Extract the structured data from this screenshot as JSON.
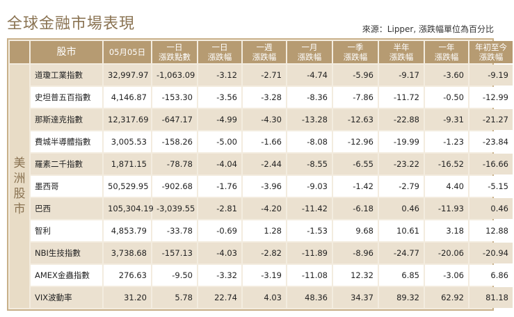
{
  "title": "全球金融市場表現",
  "source": "來源：Lipper, 漲跌幅單位為百分比",
  "table": {
    "headers": {
      "stock": "股市",
      "date": "05月05日",
      "cols": [
        "一日\n漲跌點數",
        "一日\n漲跌幅",
        "一週\n漲跌幅",
        "一月\n漲跌幅",
        "一季\n漲跌幅",
        "半年\n漲跌幅",
        "一年\n漲跌幅",
        "年初至今\n漲跌幅"
      ]
    },
    "region": "美洲股市",
    "rows": [
      {
        "name": "道瓊工業指數",
        "vals": [
          "32,997.97",
          "-1,063.09",
          "-3.12",
          "-2.71",
          "-4.74",
          "-5.96",
          "-9.17",
          "-3.60",
          "-9.19"
        ]
      },
      {
        "name": "史坦普五百指數",
        "vals": [
          "4,146.87",
          "-153.30",
          "-3.56",
          "-3.28",
          "-8.36",
          "-7.86",
          "-11.72",
          "-0.50",
          "-12.99"
        ]
      },
      {
        "name": "那斯達克指數",
        "vals": [
          "12,317.69",
          "-647.17",
          "-4.99",
          "-4.30",
          "-13.28",
          "-12.63",
          "-22.88",
          "-9.31",
          "-21.27"
        ]
      },
      {
        "name": "費城半導體指數",
        "vals": [
          "3,005.53",
          "-158.26",
          "-5.00",
          "-1.66",
          "-8.08",
          "-12.96",
          "-19.99",
          "-1.23",
          "-23.84"
        ]
      },
      {
        "name": "羅素二千指數",
        "vals": [
          "1,871.15",
          "-78.78",
          "-4.04",
          "-2.44",
          "-8.55",
          "-6.55",
          "-23.22",
          "-16.52",
          "-16.66"
        ]
      },
      {
        "name": "墨西哥",
        "vals": [
          "50,529.95",
          "-902.68",
          "-1.76",
          "-3.96",
          "-9.03",
          "-1.42",
          "-2.79",
          "4.40",
          "-5.15"
        ]
      },
      {
        "name": "巴西",
        "vals": [
          "105,304.19",
          "-3,039.55",
          "-2.81",
          "-4.20",
          "-11.42",
          "-6.18",
          "0.46",
          "-11.93",
          "0.46"
        ]
      },
      {
        "name": "智利",
        "vals": [
          "4,853.79",
          "-33.78",
          "-0.69",
          "1.28",
          "-1.53",
          "9.68",
          "10.61",
          "3.18",
          "12.88"
        ]
      },
      {
        "name": "NBI生技指數",
        "vals": [
          "3,738.68",
          "-157.13",
          "-4.03",
          "-2.82",
          "-11.89",
          "-8.96",
          "-24.77",
          "-20.06",
          "-20.94"
        ]
      },
      {
        "name": "AMEX金蟲指數",
        "vals": [
          "276.63",
          "-9.50",
          "-3.32",
          "-3.19",
          "-11.08",
          "12.32",
          "6.85",
          "-3.06",
          "6.86"
        ]
      },
      {
        "name": "VIX波動率",
        "vals": [
          "31.20",
          "5.78",
          "22.74",
          "4.03",
          "48.36",
          "34.37",
          "89.32",
          "62.92",
          "81.18"
        ]
      }
    ]
  }
}
